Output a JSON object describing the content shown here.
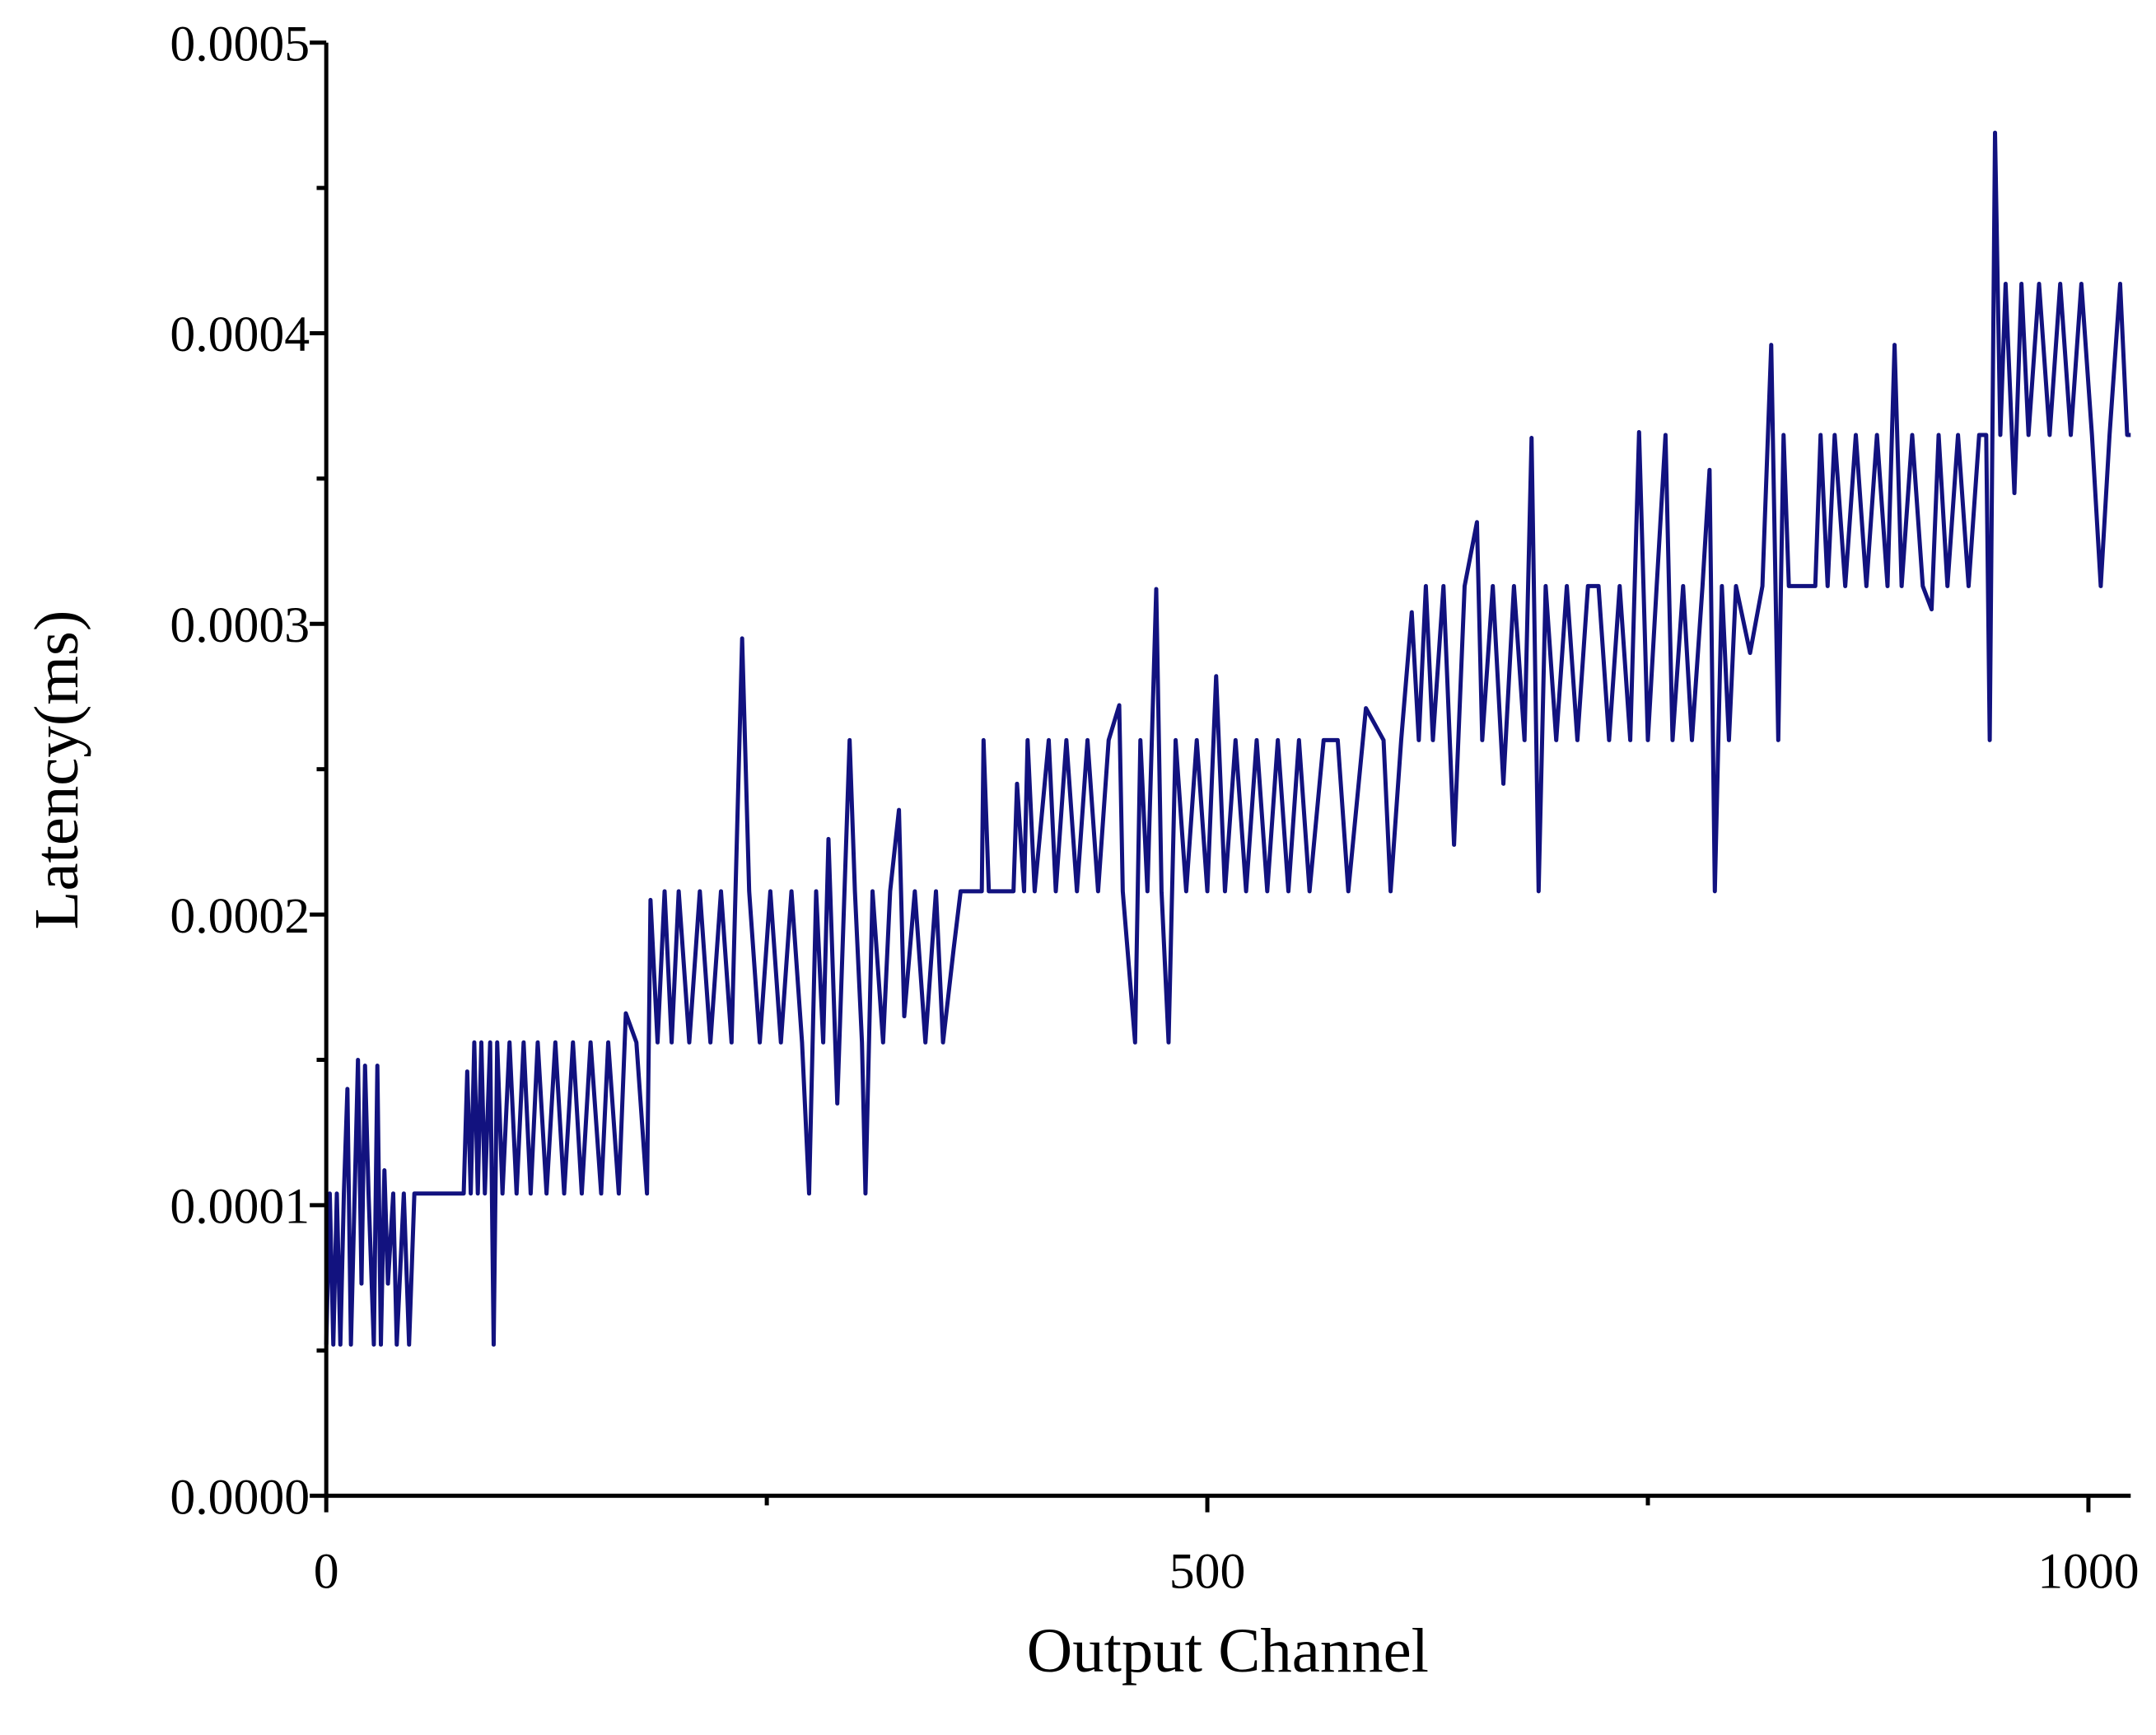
{
  "chart_data": {
    "type": "line",
    "x_label": "Output Channel",
    "y_label": "Latency(ms)",
    "xlim": [
      0,
      1024
    ],
    "ylim": [
      0,
      0.0005
    ],
    "xticks": [
      0,
      500,
      1000
    ],
    "xminorticks": [
      250,
      750
    ],
    "yticks": [
      {
        "value": 0,
        "label": "0.0000"
      },
      {
        "value": 0.0001,
        "label": "0.0001"
      },
      {
        "value": 0.0002,
        "label": "0.0002"
      },
      {
        "value": 0.0003,
        "label": "0.0003"
      },
      {
        "value": 0.0004,
        "label": "0.0004"
      },
      {
        "value": 0.0005,
        "label": "0.0005"
      }
    ],
    "yminorticks": [
      5e-05,
      0.00015,
      0.00025,
      0.00035,
      0.00045
    ],
    "color": "#12127f",
    "x": [
      0,
      2,
      4,
      6,
      8,
      10,
      12,
      14,
      18,
      20,
      22,
      24,
      27,
      29,
      31,
      33,
      35,
      38,
      40,
      44,
      47,
      50,
      78,
      80,
      82,
      84,
      86,
      88,
      90,
      93,
      95,
      97,
      100,
      104,
      108,
      112,
      116,
      120,
      125,
      130,
      135,
      140,
      145,
      150,
      156,
      160,
      166,
      170,
      176,
      182,
      184,
      188,
      192,
      196,
      200,
      206,
      212,
      218,
      224,
      230,
      236,
      240,
      246,
      252,
      258,
      264,
      270,
      274,
      278,
      282,
      285,
      290,
      297,
      300,
      304,
      306,
      310,
      316,
      320,
      325,
      328,
      334,
      340,
      346,
      350,
      356,
      360,
      372,
      373,
      376,
      390,
      392,
      396,
      398,
      402,
      410,
      414,
      420,
      426,
      432,
      438,
      444,
      450,
      452,
      459,
      462,
      466,
      471,
      474,
      478,
      482,
      488,
      494,
      500,
      505,
      510,
      516,
      522,
      528,
      534,
      540,
      546,
      552,
      558,
      566,
      574,
      580,
      590,
      600,
      604,
      610,
      616,
      620,
      624,
      628,
      634,
      640,
      646,
      653,
      656,
      662,
      668,
      674,
      680,
      684,
      688,
      692,
      698,
      704,
      710,
      716,
      722,
      728,
      734,
      740,
      745,
      750,
      755,
      760,
      764,
      770,
      775,
      781,
      785,
      788,
      792,
      796,
      800,
      808,
      815,
      820,
      824,
      827,
      830,
      845,
      848,
      852,
      856,
      862,
      868,
      874,
      880,
      886,
      890,
      894,
      900,
      906,
      911,
      915,
      920,
      926,
      932,
      938,
      942,
      944,
      947,
      950,
      953,
      958,
      962,
      966,
      972,
      978,
      984,
      990,
      996,
      1002,
      1007,
      1012,
      1018,
      1022,
      1024
    ],
    "values": [
      5.2e-05,
      0.000104,
      5.2e-05,
      0.000104,
      5.2e-05,
      0.000104,
      0.00014,
      5.2e-05,
      0.00015,
      7.3e-05,
      0.000148,
      0.000104,
      5.2e-05,
      0.000148,
      5.2e-05,
      0.000112,
      7.3e-05,
      0.000104,
      5.2e-05,
      0.000104,
      5.2e-05,
      0.000104,
      0.000104,
      0.000146,
      0.000104,
      0.000156,
      0.000104,
      0.000156,
      0.000104,
      0.000156,
      5.2e-05,
      0.000156,
      0.000104,
      0.000156,
      0.000104,
      0.000156,
      0.000104,
      0.000156,
      0.000104,
      0.000156,
      0.000104,
      0.000156,
      0.000104,
      0.000156,
      0.000104,
      0.000156,
      0.000104,
      0.000166,
      0.000156,
      0.000104,
      0.000205,
      0.000156,
      0.000208,
      0.000156,
      0.000208,
      0.000156,
      0.000208,
      0.000156,
      0.000208,
      0.000156,
      0.000295,
      0.000208,
      0.000156,
      0.000208,
      0.000156,
      0.000208,
      0.000156,
      0.000104,
      0.000208,
      0.000156,
      0.000226,
      0.000135,
      0.00026,
      0.000208,
      0.000156,
      0.000104,
      0.000208,
      0.000156,
      0.000208,
      0.000236,
      0.000165,
      0.000208,
      0.000156,
      0.000208,
      0.000156,
      0.000188,
      0.000208,
      0.000208,
      0.00026,
      0.000208,
      0.000208,
      0.000245,
      0.000208,
      0.00026,
      0.000208,
      0.00026,
      0.000208,
      0.00026,
      0.000208,
      0.00026,
      0.000208,
      0.00026,
      0.000272,
      0.000208,
      0.000156,
      0.00026,
      0.000208,
      0.000312,
      0.000208,
      0.000156,
      0.00026,
      0.000208,
      0.00026,
      0.000208,
      0.000282,
      0.000208,
      0.00026,
      0.000208,
      0.00026,
      0.000208,
      0.00026,
      0.000208,
      0.00026,
      0.000208,
      0.00026,
      0.00026,
      0.000208,
      0.000271,
      0.00026,
      0.000208,
      0.00026,
      0.000304,
      0.00026,
      0.000313,
      0.00026,
      0.000313,
      0.000224,
      0.000313,
      0.000335,
      0.00026,
      0.000313,
      0.000245,
      0.000313,
      0.00026,
      0.000364,
      0.000208,
      0.000313,
      0.00026,
      0.000313,
      0.00026,
      0.000313,
      0.000313,
      0.00026,
      0.000313,
      0.00026,
      0.000366,
      0.00026,
      0.000313,
      0.000365,
      0.00026,
      0.000313,
      0.00026,
      0.000313,
      0.000353,
      0.000208,
      0.000313,
      0.00026,
      0.000313,
      0.00029,
      0.000313,
      0.000396,
      0.00026,
      0.000365,
      0.000313,
      0.000313,
      0.000365,
      0.000313,
      0.000365,
      0.000313,
      0.000365,
      0.000313,
      0.000365,
      0.000313,
      0.000396,
      0.000313,
      0.000365,
      0.000313,
      0.000305,
      0.000365,
      0.000313,
      0.000365,
      0.000313,
      0.000365,
      0.000365,
      0.00026,
      0.000469,
      0.000365,
      0.000417,
      0.000345,
      0.000417,
      0.000365,
      0.000417,
      0.000365,
      0.000417,
      0.000365,
      0.000417,
      0.000365,
      0.000313,
      0.000365,
      0.000417,
      0.000365,
      0.000365
    ]
  }
}
